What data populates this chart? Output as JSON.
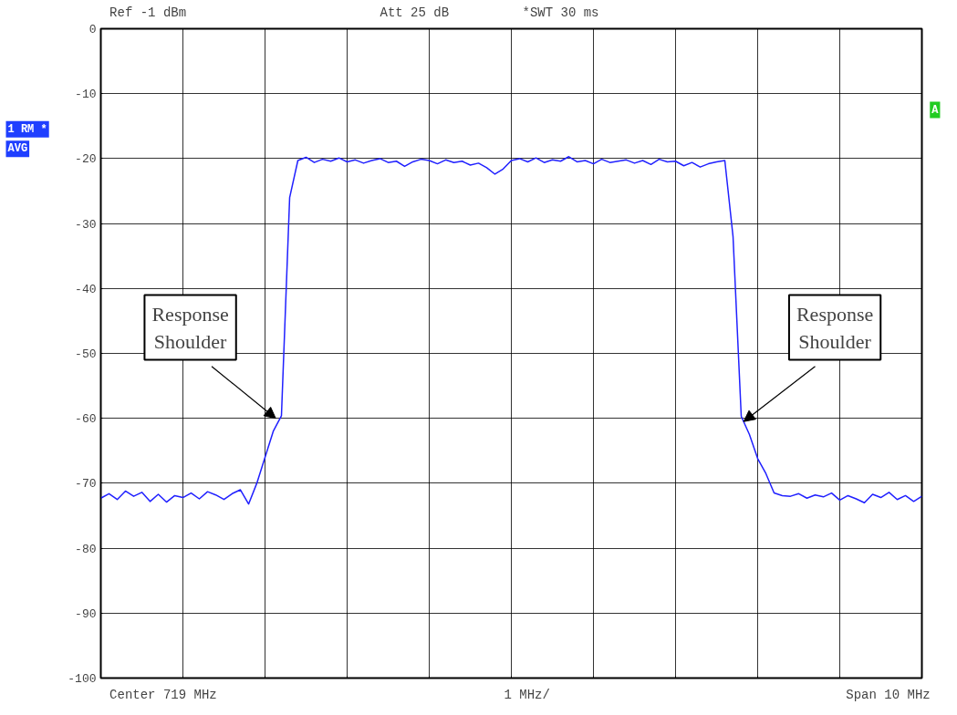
{
  "chart_data": {
    "type": "line",
    "categories": [
      null,
      null,
      null,
      null,
      null,
      null,
      null,
      null,
      null,
      null,
      null,
      null,
      null,
      null,
      null,
      null,
      null,
      null,
      null,
      null,
      null,
      null,
      null,
      null,
      null,
      null,
      null,
      null,
      null,
      null,
      null,
      null,
      null,
      null,
      null,
      null,
      null,
      null,
      null,
      null,
      null,
      null,
      null,
      null,
      null,
      null,
      null,
      null,
      null,
      null,
      null,
      null,
      null,
      null,
      null,
      null,
      null,
      null,
      null,
      null,
      null,
      null,
      null,
      null,
      null,
      null,
      null,
      null,
      null,
      null,
      null,
      null,
      null,
      null,
      null,
      null,
      null,
      null,
      null,
      null,
      null,
      null,
      null,
      null,
      null,
      null,
      null,
      null,
      null,
      null,
      null,
      null,
      null,
      null,
      null,
      null,
      null,
      null,
      null,
      null,
      null
    ],
    "series": [
      {
        "color": "#2020ff",
        "values": [
          -72.3,
          -71.6,
          -72.5,
          -71.2,
          -72.0,
          -71.4,
          -72.8,
          -71.7,
          -72.9,
          -71.9,
          -72.2,
          -71.5,
          -72.4,
          -71.3,
          -71.8,
          -72.5,
          -71.6,
          -71.0,
          -73.2,
          -70.0,
          -66.0,
          -62.0,
          -59.6,
          -26.0,
          -20.3,
          -19.8,
          -20.6,
          -20.1,
          -20.4,
          -19.9,
          -20.5,
          -20.2,
          -20.7,
          -20.3,
          -20.0,
          -20.6,
          -20.4,
          -21.2,
          -20.5,
          -20.1,
          -20.3,
          -20.8,
          -20.2,
          -20.6,
          -20.4,
          -21.0,
          -20.7,
          -21.4,
          -22.4,
          -21.6,
          -20.3,
          -20.0,
          -20.5,
          -19.9,
          -20.6,
          -20.2,
          -20.4,
          -19.7,
          -20.5,
          -20.3,
          -20.8,
          -20.1,
          -20.6,
          -20.4,
          -20.2,
          -20.7,
          -20.3,
          -20.9,
          -20.1,
          -20.5,
          -20.4,
          -21.1,
          -20.6,
          -21.3,
          -20.8,
          -20.5,
          -20.3,
          -32.0,
          -59.7,
          -62.5,
          -66.2,
          -68.5,
          -71.5,
          -71.9,
          -72.0,
          -71.6,
          -72.3,
          -71.8,
          -72.1,
          -71.5,
          -72.6,
          -71.9,
          -72.4,
          -73.0,
          -71.7,
          -72.2,
          -71.4,
          -72.5,
          -71.9,
          -72.8,
          -72.0
        ]
      }
    ],
    "ylim": [
      -100,
      0
    ],
    "yticks": [
      -100,
      -90,
      -80,
      -70,
      -60,
      -50,
      -40,
      -30,
      -20,
      -10,
      0
    ],
    "tick_labels": "y",
    "grid": true,
    "marker": "none",
    "line_style": "solid",
    "annotations": [
      "Ref -1 dBm",
      "Att 25 dB",
      "*SWT 30 ms",
      "Center 719 MHz",
      "1 MHz/",
      "Span 10 MHz",
      "1 RM *",
      "AVG",
      "A",
      "Response Shoulder",
      "Response Shoulder"
    ]
  }
}
